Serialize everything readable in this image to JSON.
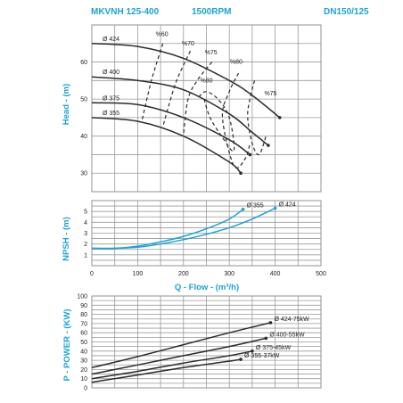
{
  "header": {
    "model": "MKVNH 125-400",
    "speed": "1500RPM",
    "dn": "DN150/125"
  },
  "colors": {
    "accent": "#1aa3d9",
    "curve": "#2b2b2b",
    "npsh": "#1aa3d9"
  },
  "chart_data": [
    {
      "type": "line",
      "ylabel": "Head - (m)",
      "xlim": [
        0,
        500
      ],
      "ylim": [
        25,
        70
      ],
      "y_ticks": [
        "30",
        "40",
        "50",
        "60"
      ],
      "grid": true,
      "series": [
        {
          "name": "Ø 424",
          "x": [
            0,
            100,
            200,
            300,
            350,
            410
          ],
          "y": [
            65,
            64.2,
            61,
            55,
            51,
            45
          ]
        },
        {
          "name": "Ø 400",
          "x": [
            0,
            100,
            200,
            300,
            350,
            385
          ],
          "y": [
            56,
            55,
            52.5,
            46,
            41,
            37.5
          ]
        },
        {
          "name": "Ø 375",
          "x": [
            0,
            100,
            200,
            300,
            345
          ],
          "y": [
            49,
            48.5,
            45,
            39,
            35
          ]
        },
        {
          "name": "Ø 355",
          "x": [
            0,
            100,
            200,
            300,
            325
          ],
          "y": [
            45,
            44,
            40,
            33,
            30
          ]
        }
      ],
      "efficiency_lines": [
        {
          "label": "%60",
          "x": [
            155,
            130,
            110
          ],
          "y": [
            65,
            55,
            44.5
          ]
        },
        {
          "label": "%70",
          "x": [
            215,
            185,
            165,
            155
          ],
          "y": [
            63,
            55,
            47,
            42.5
          ]
        },
        {
          "label": "%75",
          "x": [
            262,
            230,
            210,
            200
          ],
          "y": [
            60,
            55,
            50,
            40.5
          ]
        },
        {
          "label": "%80",
          "x": [
            245,
            258,
            283,
            310,
            300,
            275,
            248,
            230
          ],
          "y": [
            50,
            45,
            40,
            36,
            45,
            50,
            52,
            50
          ]
        },
        {
          "label": "%80",
          "x": [
            320,
            300,
            285,
            310,
            335,
            345
          ],
          "y": [
            57,
            52,
            45,
            32,
            34,
            38
          ]
        },
        {
          "label": "%75",
          "x": [
            355,
            345,
            340,
            350,
            365,
            380
          ],
          "y": [
            55,
            50,
            45,
            38,
            35,
            40
          ]
        }
      ],
      "efficiency_labels": [
        {
          "text": "%60",
          "x": 153,
          "y": 67
        },
        {
          "text": "%70",
          "x": 210,
          "y": 64.5
        },
        {
          "text": "%75",
          "x": 260,
          "y": 62
        },
        {
          "text": "%80",
          "x": 315,
          "y": 59.5
        },
        {
          "text": "%80",
          "x": 250,
          "y": 54.5
        },
        {
          "text": "%75",
          "x": 390,
          "y": 51
        }
      ]
    },
    {
      "type": "line",
      "ylabel": "NPSH - (m)",
      "xlabel": "Q - Flow - (m³/h)",
      "xlim": [
        0,
        500
      ],
      "ylim": [
        0,
        6
      ],
      "x_ticks": [
        "0",
        "100",
        "200",
        "300",
        "400",
        "500"
      ],
      "y_ticks": [
        "1",
        "2",
        "3",
        "4",
        "5"
      ],
      "grid": true,
      "series": [
        {
          "name": "Ø 355",
          "x": [
            0,
            50,
            100,
            150,
            200,
            250,
            300,
            330
          ],
          "y": [
            1.6,
            1.6,
            1.8,
            2.2,
            2.7,
            3.4,
            4.3,
            5.2
          ]
        },
        {
          "name": "Ø 424",
          "x": [
            0,
            50,
            100,
            150,
            200,
            250,
            300,
            350,
            400
          ],
          "y": [
            1.6,
            1.6,
            1.7,
            2.0,
            2.4,
            2.9,
            3.5,
            4.3,
            5.3
          ]
        }
      ]
    },
    {
      "type": "line",
      "ylabel": "P - POWER - (KW)",
      "xlim": [
        0,
        500
      ],
      "ylim": [
        0,
        100
      ],
      "y_ticks": [
        "0",
        "10",
        "20",
        "30",
        "40",
        "50",
        "60",
        "70",
        "80",
        "90",
        "100"
      ],
      "grid": true,
      "series": [
        {
          "name": "Ø 424-75kW",
          "x": [
            0,
            100,
            200,
            300,
            390
          ],
          "y": [
            22,
            34,
            47,
            60,
            71
          ]
        },
        {
          "name": "Ø 400-55kW",
          "x": [
            0,
            100,
            200,
            300,
            380
          ],
          "y": [
            15,
            25,
            35,
            45,
            54
          ]
        },
        {
          "name": "Ø 375-45kW",
          "x": [
            0,
            100,
            200,
            300,
            350
          ],
          "y": [
            10,
            18,
            27,
            35,
            40
          ]
        },
        {
          "name": "Ø 355-37kW",
          "x": [
            0,
            100,
            200,
            300,
            325
          ],
          "y": [
            6,
            14,
            22,
            29,
            31
          ]
        }
      ]
    }
  ]
}
